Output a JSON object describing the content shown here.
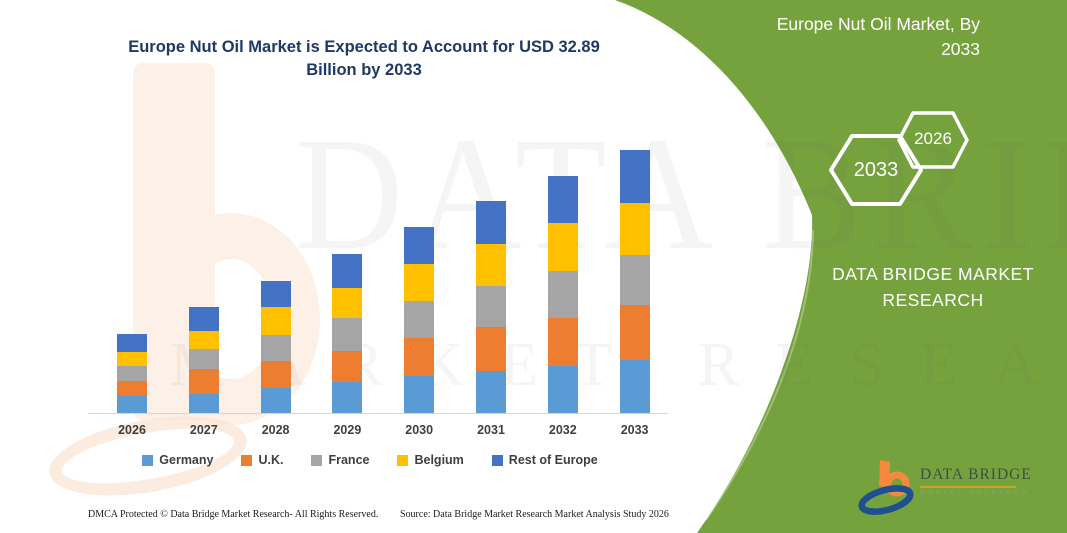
{
  "header": {
    "title_line1": "Europe Nut Oil Market is Expected to Account for USD 32.89",
    "title_line2": "Billion by 2033"
  },
  "side_panel": {
    "panel_color": "#76A23E",
    "title_line1": "Europe Nut Oil Market, By",
    "title_line2": "2033",
    "hexagon_large_label": "2033",
    "hexagon_small_label": "2026",
    "brand_line1": "DATA BRIDGE MARKET",
    "brand_line2": "RESEARCH"
  },
  "logo": {
    "name_text": "DATA BRIDGE",
    "subtitle_text": "MARKET RESEARCH"
  },
  "footer": {
    "dmca_text": "DMCA Protected © Data Bridge Market Research-  All Rights Reserved.",
    "source_text": "Source: Data Bridge Market Research  Market Analysis Study 2026"
  },
  "watermark": {
    "row1": "DATA BRIDGE",
    "row2": "MARKET RESEARCH"
  },
  "chart_data": {
    "type": "bar",
    "stacked": true,
    "title": "Europe Nut Oil Market is Expected to Account for USD 32.89 Billion by 2033",
    "unit": "USD Billion",
    "xlabel": "",
    "ylabel": "",
    "y_axis_visible": false,
    "grid": false,
    "legend_position": "bottom",
    "categories": [
      "2026",
      "2027",
      "2028",
      "2029",
      "2030",
      "2031",
      "2032",
      "2033"
    ],
    "series": [
      {
        "name": "Germany",
        "color": "#5B9BD5",
        "values": [
          2.13,
          2.38,
          3.13,
          3.88,
          4.63,
          5.25,
          5.88,
          6.63
        ]
      },
      {
        "name": "U.K.",
        "color": "#ED7D31",
        "values": [
          1.88,
          3.13,
          3.38,
          3.88,
          4.75,
          5.5,
          6.0,
          6.88
        ]
      },
      {
        "name": "France",
        "color": "#A5A5A5",
        "values": [
          1.88,
          2.5,
          3.25,
          4.13,
          4.63,
          5.13,
          5.88,
          6.25
        ]
      },
      {
        "name": "Belgium",
        "color": "#FFC000",
        "values": [
          1.75,
          2.25,
          3.5,
          3.75,
          4.63,
          5.25,
          6.0,
          6.5
        ]
      },
      {
        "name": "Rest of Europe",
        "color": "#4472C4",
        "values": [
          2.25,
          3.0,
          3.25,
          4.25,
          4.63,
          5.38,
          5.88,
          6.63
        ]
      }
    ],
    "totals": [
      9.89,
      13.26,
      16.51,
      19.89,
      23.27,
      26.51,
      29.64,
      32.89
    ],
    "ylim": [
      0,
      35
    ]
  }
}
